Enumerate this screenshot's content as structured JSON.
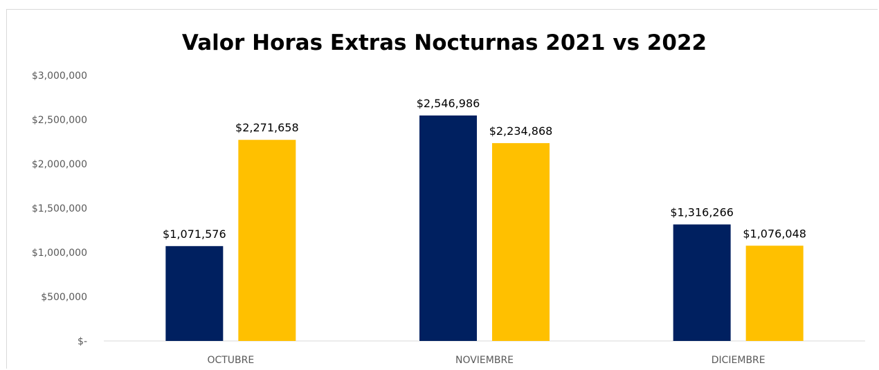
{
  "chart_data": {
    "type": "bar",
    "title": "Valor Horas Extras Nocturnas 2021 vs 2022",
    "categories": [
      "OCTUBRE",
      "NOVIEMBRE",
      "DICIEMBRE"
    ],
    "series": [
      {
        "values": [
          1071576,
          2546986,
          1316266
        ],
        "labels": [
          "$1,071,576",
          "$2,546,986",
          "$1,316,266"
        ],
        "color": "#002060"
      },
      {
        "values": [
          2271658,
          2234868,
          1076048
        ],
        "labels": [
          "$2,271,658",
          "$2,234,868",
          "$1,076,048"
        ],
        "color": "#FFC000"
      }
    ],
    "ylim": [
      0,
      3000000
    ],
    "yticks": [
      0,
      500000,
      1000000,
      1500000,
      2000000,
      2500000,
      3000000
    ],
    "ytick_labels": [
      "$-",
      "$500,000",
      "$1,000,000",
      "$1,500,000",
      "$2,000,000",
      "$2,500,000",
      "$3,000,000"
    ],
    "xlabel": "",
    "ylabel": "",
    "grid": false,
    "legend": "none"
  }
}
